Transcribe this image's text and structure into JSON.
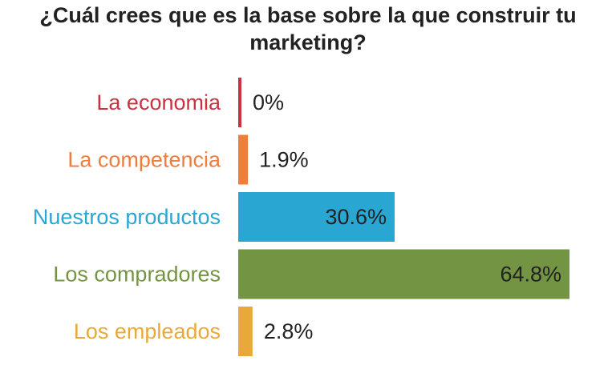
{
  "chart_data": {
    "type": "bar",
    "orientation": "horizontal",
    "title": "¿Cuál crees que es la base sobre la que construir tu marketing?",
    "title_lines": [
      "¿Cuál crees que es la base sobre la que construir tu",
      "marketing?"
    ],
    "categories": [
      "La economia",
      "La competencia",
      "Nuestros productos",
      "Los compradores",
      "Los empleados"
    ],
    "values": [
      0,
      1.9,
      30.6,
      64.8,
      2.8
    ],
    "value_labels": [
      "0%",
      "1.9%",
      "30.6%",
      "64.8%",
      "2.8%"
    ],
    "colors": [
      "#c9323f",
      "#ef7d3c",
      "#2aa6d3",
      "#739442",
      "#e9a93a"
    ],
    "xlim": [
      0,
      64.8
    ],
    "xlabel": "",
    "ylabel": "",
    "grid": false,
    "legend": "none"
  }
}
